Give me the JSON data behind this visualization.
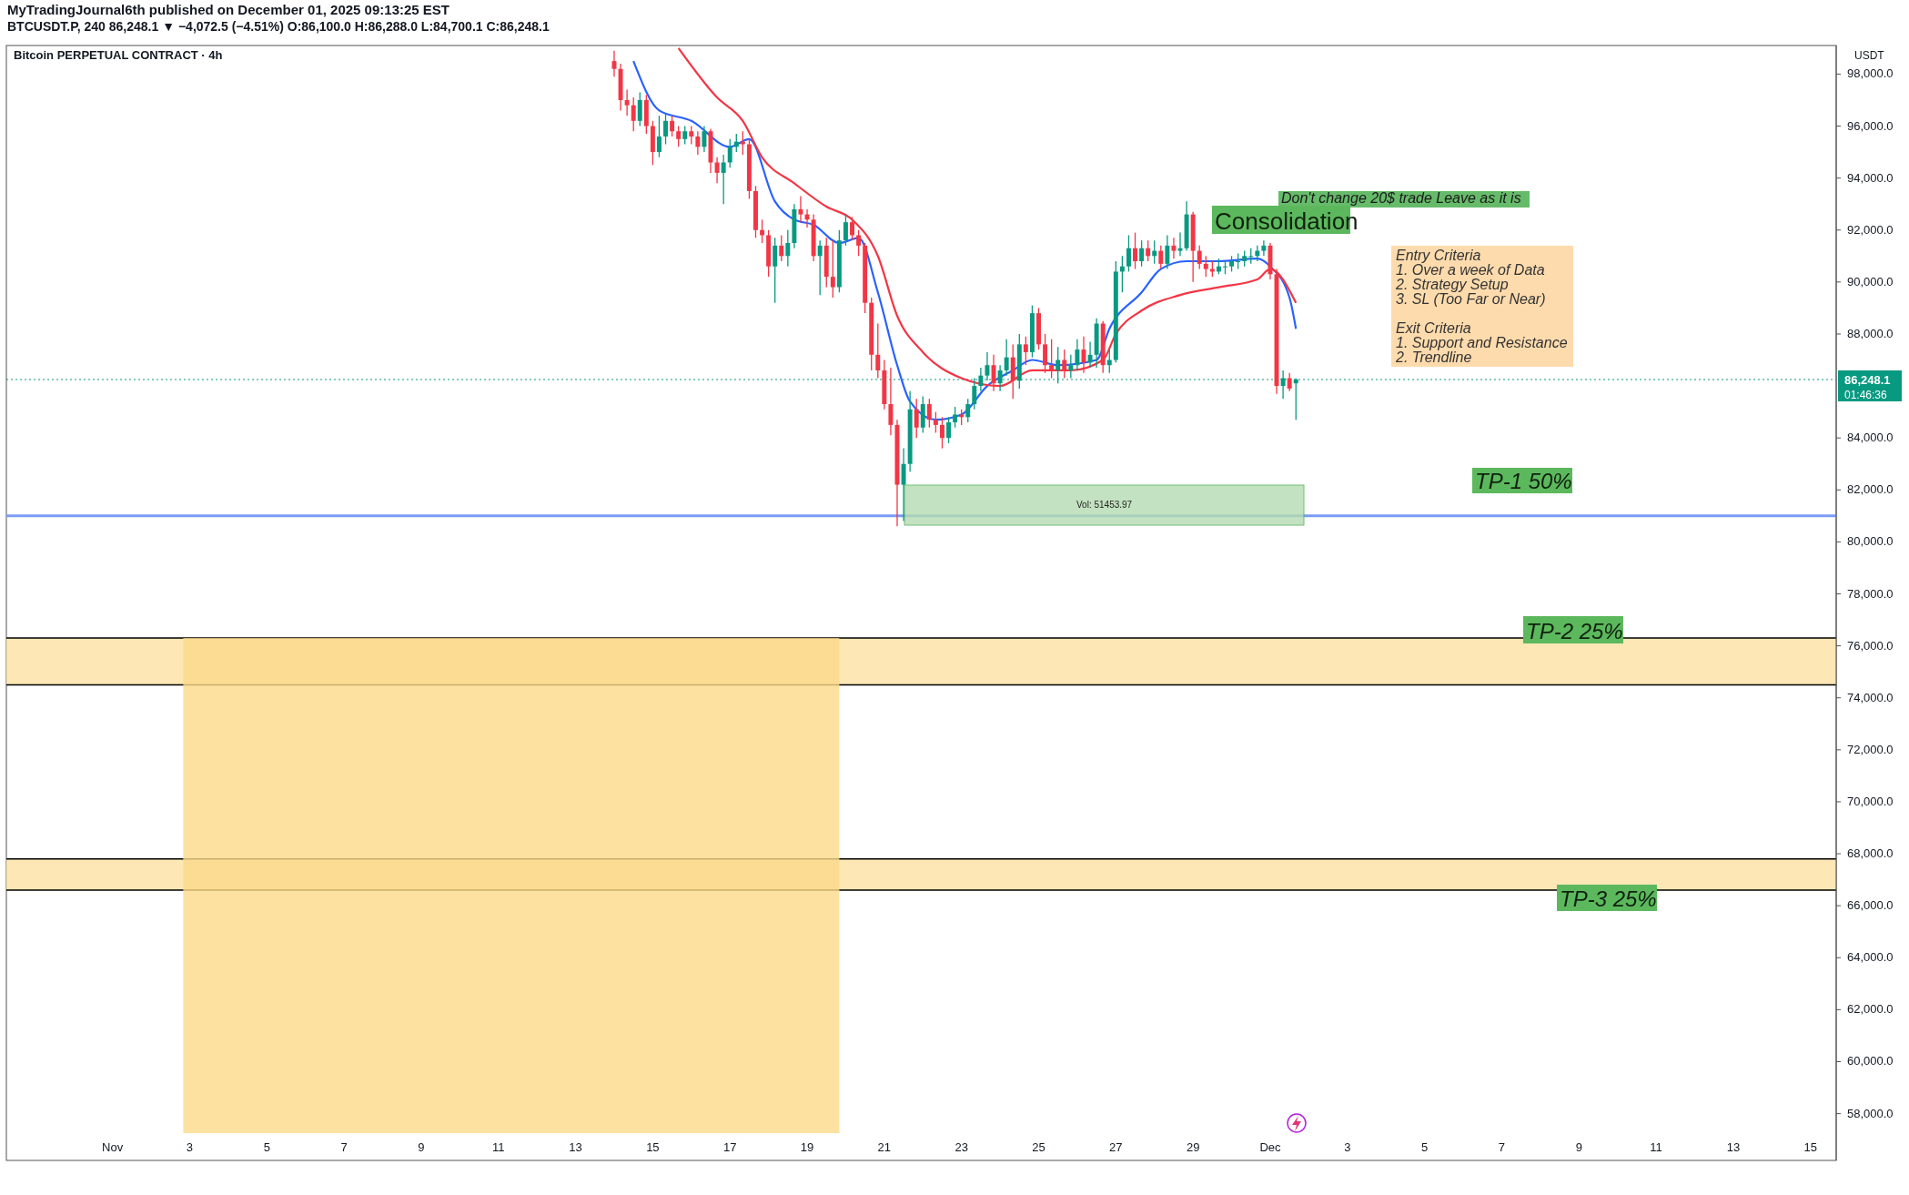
{
  "chart_data": {
    "type": "candlestick",
    "title": "Bitcoin PERPETUAL CONTRACT · 4h",
    "subtitle": "BTCUSDT.P, 240  86,248.1 ▼ −4,072.5 (−4.51%)  O:86,100.0 H:86,288.0 L:84,700.1 C:86,248.1",
    "ylabel": "USDT",
    "x": [
      "2025-11-14T00:00",
      "2025-11-14T04:00",
      "2025-11-14T08:00",
      "2025-11-14T12:00",
      "2025-11-14T16:00",
      "2025-11-14T20:00",
      "2025-11-15T00:00",
      "2025-11-15T04:00",
      "2025-11-15T08:00",
      "2025-11-15T12:00",
      "2025-11-15T16:00",
      "2025-11-15T20:00",
      "2025-11-16T00:00",
      "2025-11-16T04:00",
      "2025-11-16T08:00",
      "2025-11-16T12:00",
      "2025-11-16T16:00",
      "2025-11-16T20:00",
      "2025-11-17T00:00",
      "2025-11-17T04:00",
      "2025-11-17T08:00",
      "2025-11-17T12:00",
      "2025-11-17T16:00",
      "2025-11-17T20:00",
      "2025-11-18T00:00",
      "2025-11-18T04:00",
      "2025-11-18T08:00",
      "2025-11-18T12:00",
      "2025-11-18T16:00",
      "2025-11-18T20:00",
      "2025-11-19T00:00",
      "2025-11-19T04:00",
      "2025-11-19T08:00",
      "2025-11-19T12:00",
      "2025-11-19T16:00",
      "2025-11-19T20:00",
      "2025-11-20T00:00",
      "2025-11-20T04:00",
      "2025-11-20T08:00",
      "2025-11-20T12:00",
      "2025-11-20T16:00",
      "2025-11-20T20:00",
      "2025-11-21T00:00",
      "2025-11-21T04:00",
      "2025-11-21T08:00",
      "2025-11-21T12:00",
      "2025-11-21T16:00",
      "2025-11-21T20:00",
      "2025-11-22T00:00",
      "2025-11-22T04:00",
      "2025-11-22T08:00",
      "2025-11-22T12:00",
      "2025-11-22T16:00",
      "2025-11-22T20:00",
      "2025-11-23T00:00",
      "2025-11-23T04:00",
      "2025-11-23T08:00",
      "2025-11-23T12:00",
      "2025-11-23T16:00",
      "2025-11-23T20:00",
      "2025-11-24T00:00",
      "2025-11-24T04:00",
      "2025-11-24T08:00",
      "2025-11-24T12:00",
      "2025-11-24T16:00",
      "2025-11-24T20:00",
      "2025-11-25T00:00",
      "2025-11-25T04:00",
      "2025-11-25T08:00",
      "2025-11-25T12:00",
      "2025-11-25T16:00",
      "2025-11-25T20:00",
      "2025-11-26T00:00",
      "2025-11-26T04:00",
      "2025-11-26T08:00",
      "2025-11-26T12:00",
      "2025-11-26T16:00",
      "2025-11-26T20:00",
      "2025-11-27T00:00",
      "2025-11-27T04:00",
      "2025-11-27T08:00",
      "2025-11-27T12:00",
      "2025-11-27T16:00",
      "2025-11-27T20:00",
      "2025-11-28T00:00",
      "2025-11-28T04:00",
      "2025-11-28T08:00",
      "2025-11-28T12:00",
      "2025-11-28T16:00",
      "2025-11-28T20:00",
      "2025-11-29T00:00",
      "2025-11-29T04:00",
      "2025-11-29T08:00",
      "2025-11-29T12:00",
      "2025-11-29T16:00",
      "2025-11-29T20:00",
      "2025-11-30T00:00",
      "2025-11-30T04:00",
      "2025-11-30T08:00",
      "2025-11-30T12:00",
      "2025-11-30T16:00",
      "2025-11-30T20:00",
      "2025-12-01T00:00",
      "2025-12-01T04:00",
      "2025-12-01T08:00",
      "2025-12-01T12:00",
      "2025-12-01T16:00"
    ],
    "ohlc": [
      [
        98500,
        98900,
        97900,
        98200
      ],
      [
        98200,
        98400,
        96600,
        97000
      ],
      [
        97000,
        97400,
        96400,
        96800
      ],
      [
        96800,
        97100,
        95800,
        96200
      ],
      [
        96200,
        97300,
        96000,
        97000
      ],
      [
        97000,
        97200,
        95700,
        96000
      ],
      [
        96000,
        96200,
        94500,
        95000
      ],
      [
        95000,
        96400,
        94800,
        95600
      ],
      [
        95600,
        96500,
        95300,
        96200
      ],
      [
        96200,
        96400,
        95600,
        95800
      ],
      [
        95800,
        96000,
        95200,
        95500
      ],
      [
        95500,
        96000,
        95300,
        95800
      ],
      [
        95800,
        96000,
        95300,
        95600
      ],
      [
        95600,
        95800,
        94900,
        95200
      ],
      [
        95200,
        96000,
        95000,
        95800
      ],
      [
        95800,
        95900,
        94200,
        94600
      ],
      [
        94600,
        94800,
        93800,
        94200
      ],
      [
        94200,
        94900,
        93000,
        94600
      ],
      [
        94600,
        95500,
        94400,
        95200
      ],
      [
        95200,
        95700,
        95000,
        95400
      ],
      [
        95400,
        95800,
        94900,
        95300
      ],
      [
        95300,
        95500,
        93200,
        93500
      ],
      [
        93500,
        93700,
        91700,
        92000
      ],
      [
        92000,
        92400,
        91500,
        91800
      ],
      [
        91800,
        92000,
        90200,
        90600
      ],
      [
        90600,
        91700,
        89200,
        91400
      ],
      [
        91400,
        91800,
        90800,
        91000
      ],
      [
        91000,
        92000,
        90600,
        91500
      ],
      [
        91500,
        93000,
        91300,
        92800
      ],
      [
        92800,
        93300,
        92300,
        92600
      ],
      [
        92600,
        92800,
        92100,
        92400
      ],
      [
        92400,
        92600,
        90800,
        91000
      ],
      [
        91000,
        91600,
        89500,
        91400
      ],
      [
        91400,
        91700,
        89800,
        90200
      ],
      [
        90200,
        91600,
        89400,
        89800
      ],
      [
        89800,
        92000,
        89600,
        91600
      ],
      [
        91600,
        92600,
        91400,
        92300
      ],
      [
        92300,
        92500,
        91600,
        91800
      ],
      [
        91800,
        92000,
        91000,
        91400
      ],
      [
        91400,
        91500,
        88800,
        89200
      ],
      [
        89200,
        89400,
        86600,
        87200
      ],
      [
        87200,
        88400,
        86300,
        86600
      ],
      [
        86600,
        87000,
        85100,
        85300
      ],
      [
        85300,
        86700,
        84100,
        84500
      ],
      [
        84500,
        84700,
        80600,
        82200
      ],
      [
        82200,
        83600,
        80800,
        83000
      ],
      [
        83000,
        85800,
        82700,
        85100
      ],
      [
        85100,
        85500,
        84000,
        84400
      ],
      [
        84400,
        85600,
        84200,
        85300
      ],
      [
        85300,
        85500,
        84400,
        84700
      ],
      [
        84700,
        85000,
        84200,
        84500
      ],
      [
        84500,
        84800,
        83600,
        84000
      ],
      [
        84000,
        84800,
        83800,
        84600
      ],
      [
        84600,
        85200,
        84400,
        84900
      ],
      [
        84900,
        85100,
        84500,
        84800
      ],
      [
        84800,
        85500,
        84600,
        85300
      ],
      [
        85300,
        86300,
        85100,
        86000
      ],
      [
        86000,
        86700,
        85800,
        86400
      ],
      [
        86400,
        87300,
        86200,
        86800
      ],
      [
        86800,
        87200,
        85800,
        86100
      ],
      [
        86100,
        86800,
        85800,
        86600
      ],
      [
        86600,
        87800,
        86400,
        87100
      ],
      [
        87100,
        87600,
        85500,
        86200
      ],
      [
        86200,
        88000,
        85900,
        87600
      ],
      [
        87600,
        87900,
        86800,
        87300
      ],
      [
        87300,
        89100,
        87100,
        88800
      ],
      [
        88800,
        89000,
        87400,
        87600
      ],
      [
        87600,
        88000,
        86500,
        86800
      ],
      [
        86800,
        87800,
        86300,
        86600
      ],
      [
        86600,
        87500,
        86100,
        87000
      ],
      [
        87000,
        87400,
        86300,
        86600
      ],
      [
        86600,
        87200,
        86300,
        86800
      ],
      [
        86800,
        87800,
        86600,
        87400
      ],
      [
        87400,
        87900,
        86500,
        86900
      ],
      [
        86900,
        87700,
        86700,
        87200
      ],
      [
        87200,
        88600,
        86700,
        88400
      ],
      [
        88400,
        88500,
        86500,
        86800
      ],
      [
        86800,
        87400,
        86500,
        87000
      ],
      [
        87000,
        90800,
        86900,
        90400
      ],
      [
        90400,
        91000,
        89600,
        90600
      ],
      [
        90600,
        91800,
        90400,
        91300
      ],
      [
        91300,
        91900,
        90500,
        90800
      ],
      [
        90800,
        91600,
        90600,
        91300
      ],
      [
        91300,
        91600,
        90800,
        91000
      ],
      [
        91000,
        91600,
        90700,
        91200
      ],
      [
        91200,
        91400,
        90500,
        90700
      ],
      [
        90700,
        91800,
        90500,
        91400
      ],
      [
        91400,
        91700,
        90900,
        91200
      ],
      [
        91200,
        91900,
        91000,
        91300
      ],
      [
        91300,
        93100,
        91200,
        92600
      ],
      [
        92600,
        92700,
        90000,
        91200
      ],
      [
        91200,
        91400,
        90500,
        90700
      ],
      [
        90700,
        91000,
        90200,
        90500
      ],
      [
        90500,
        90800,
        90200,
        90400
      ],
      [
        90400,
        90900,
        90300,
        90600
      ],
      [
        90600,
        90800,
        90300,
        90600
      ],
      [
        90600,
        91000,
        90400,
        90800
      ],
      [
        90800,
        91100,
        90500,
        90800
      ],
      [
        90800,
        91200,
        90600,
        91000
      ],
      [
        91000,
        91300,
        90700,
        91000
      ],
      [
        91000,
        91400,
        90800,
        91200
      ],
      [
        91200,
        91600,
        91000,
        91400
      ],
      [
        91400,
        91500,
        90100,
        90300
      ],
      [
        90300,
        90500,
        85700,
        86000
      ],
      [
        86000,
        86600,
        85500,
        86300
      ],
      [
        86300,
        86500,
        85800,
        85900
      ],
      [
        86100,
        86288,
        84700.1,
        86248.1
      ]
    ],
    "series": [
      {
        "type": "line",
        "color": "#2962ff",
        "x": [
          "2025-11-14T12:00",
          "2025-11-15T04:00",
          "2025-11-16T00:00",
          "2025-11-17T00:00",
          "2025-11-17T12:00",
          "2025-11-18T04:00",
          "2025-11-18T16:00",
          "2025-11-19T04:00",
          "2025-11-19T20:00",
          "2025-11-20T08:00",
          "2025-11-20T20:00",
          "2025-11-21T08:00",
          "2025-11-21T16:00",
          "2025-11-22T08:00",
          "2025-11-23T00:00",
          "2025-11-23T16:00",
          "2025-11-24T08:00",
          "2025-11-24T20:00",
          "2025-11-25T12:00",
          "2025-11-26T12:00",
          "2025-11-26T20:00",
          "2025-11-27T16:00",
          "2025-11-28T04:00",
          "2025-11-28T20:00",
          "2025-11-29T16:00",
          "2025-11-30T16:00",
          "2025-12-01T00:00",
          "2025-12-01T12:00",
          "2025-12-01T16:00"
        ],
        "values": [
          98500,
          96600,
          96200,
          95200,
          95500,
          93100,
          92400,
          92200,
          91500,
          91700,
          89600,
          86800,
          85400,
          84700,
          84900,
          86000,
          86600,
          87000,
          86800,
          87000,
          88200,
          89600,
          90500,
          90800,
          90800,
          90900,
          90600,
          89400,
          88200
        ]
      },
      {
        "type": "line",
        "color": "#f23645",
        "x": [
          "2025-11-15T16:00",
          "2025-11-16T16:00",
          "2025-11-17T08:00",
          "2025-11-17T20:00",
          "2025-11-18T16:00",
          "2025-11-19T12:00",
          "2025-11-20T04:00",
          "2025-11-20T20:00",
          "2025-11-21T08:00",
          "2025-11-22T00:00",
          "2025-11-23T00:00",
          "2025-11-24T00:00",
          "2025-11-24T20:00",
          "2025-11-25T20:00",
          "2025-11-26T16:00",
          "2025-11-27T00:00",
          "2025-11-27T16:00",
          "2025-11-28T16:00",
          "2025-11-29T16:00",
          "2025-11-30T16:00",
          "2025-12-01T00:00",
          "2025-12-01T16:00"
        ],
        "values": [
          99000,
          97100,
          96200,
          94800,
          93800,
          92900,
          92400,
          91000,
          88700,
          87300,
          86300,
          86000,
          86600,
          86600,
          87000,
          88000,
          88900,
          89500,
          89800,
          90100,
          90500,
          89200
        ]
      }
    ],
    "xlim": [
      "2025-10-29T06:00",
      "2025-12-15T16:00"
    ],
    "xticks": [
      {
        "value": "2025-11-01T00:00",
        "label": "Nov"
      },
      {
        "value": "2025-11-03T00:00",
        "label": "3"
      },
      {
        "value": "2025-11-05T00:00",
        "label": "5"
      },
      {
        "value": "2025-11-07T00:00",
        "label": "7"
      },
      {
        "value": "2025-11-09T00:00",
        "label": "9"
      },
      {
        "value": "2025-11-11T00:00",
        "label": "11"
      },
      {
        "value": "2025-11-13T00:00",
        "label": "13"
      },
      {
        "value": "2025-11-15T00:00",
        "label": "15"
      },
      {
        "value": "2025-11-17T00:00",
        "label": "17"
      },
      {
        "value": "2025-11-19T00:00",
        "label": "19"
      },
      {
        "value": "2025-11-21T00:00",
        "label": "21"
      },
      {
        "value": "2025-11-23T00:00",
        "label": "23"
      },
      {
        "value": "2025-11-25T00:00",
        "label": "25"
      },
      {
        "value": "2025-11-27T00:00",
        "label": "27"
      },
      {
        "value": "2025-11-29T00:00",
        "label": "29"
      },
      {
        "value": "2025-12-01T00:00",
        "label": "Dec"
      },
      {
        "value": "2025-12-03T00:00",
        "label": "3"
      },
      {
        "value": "2025-12-05T00:00",
        "label": "5"
      },
      {
        "value": "2025-12-07T00:00",
        "label": "7"
      },
      {
        "value": "2025-12-09T00:00",
        "label": "9"
      },
      {
        "value": "2025-12-11T00:00",
        "label": "11"
      },
      {
        "value": "2025-12-13T00:00",
        "label": "13"
      },
      {
        "value": "2025-12-15T00:00",
        "label": "15"
      }
    ],
    "ylim": [
      56200,
      99100
    ],
    "yticks": [
      {
        "value": 58000,
        "label": "58,000.0"
      },
      {
        "value": 60000,
        "label": "60,000.0"
      },
      {
        "value": 62000,
        "label": "62,000.0"
      },
      {
        "value": 64000,
        "label": "64,000.0"
      },
      {
        "value": 66000,
        "label": "66,000.0"
      },
      {
        "value": 68000,
        "label": "68,000.0"
      },
      {
        "value": 70000,
        "label": "70,000.0"
      },
      {
        "value": 72000,
        "label": "72,000.0"
      },
      {
        "value": 74000,
        "label": "74,000.0"
      },
      {
        "value": 76000,
        "label": "76,000.0"
      },
      {
        "value": 78000,
        "label": "78,000.0"
      },
      {
        "value": 80000,
        "label": "80,000.0"
      },
      {
        "value": 82000,
        "label": "82,000.0"
      },
      {
        "value": 84000,
        "label": "84,000.0"
      },
      {
        "value": 88000,
        "label": "88,000.0"
      },
      {
        "value": 90000,
        "label": "90,000.0"
      },
      {
        "value": 92000,
        "label": "92,000.0"
      },
      {
        "value": 94000,
        "label": "94,000.0"
      },
      {
        "value": 96000,
        "label": "96,000.0"
      },
      {
        "value": 98000,
        "label": "98,000.0"
      }
    ],
    "bands": [
      {
        "axis": "y",
        "from": 74500,
        "to": 76300,
        "color": "#fbe3a8"
      },
      {
        "axis": "y",
        "from": 66600,
        "to": 67800,
        "color": "#fbe3a8"
      },
      {
        "axis": "x",
        "from": "2025-11-02T20:00",
        "to": "2025-11-19T20:00",
        "color": "#fbd98a"
      }
    ],
    "ref_lines": [
      {
        "axis": "y",
        "value": 81000,
        "color": "#7b9cf5"
      },
      {
        "axis": "y",
        "value": 86248.1,
        "label": "86,248.1",
        "color": "#089981",
        "line_style": "dotted"
      }
    ],
    "annotations": [
      "MyTradingJournal6th published on December 01, 2025 09:13:25 EST",
      "Don't change 20$ trade Leave as it is",
      "Entry Criteria",
      "1. Over a week of Data",
      "2. Strategy Setup",
      "3. SL (Too Far or Near)",
      "Exit Criteria",
      "1. Support and Resistance",
      "2. Trendline",
      "01:46:36",
      "Consolidation",
      "TP-1 50%",
      "TP-2 25%",
      "TP-3 25%",
      "Vol: 51453.97"
    ],
    "grid": false
  }
}
